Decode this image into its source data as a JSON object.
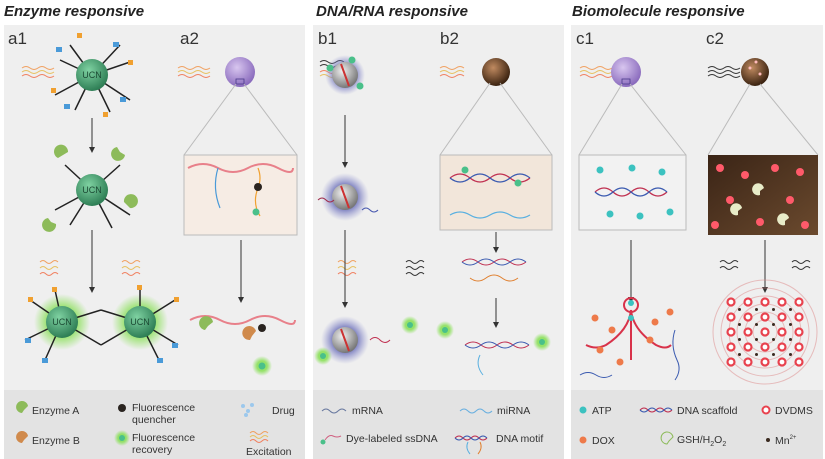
{
  "sections": [
    {
      "title": "Enzyme responsive",
      "panels": [
        "a1",
        "a2"
      ]
    },
    {
      "title": "DNA/RNA responsive",
      "panels": [
        "b1",
        "b2"
      ]
    },
    {
      "title": "Biomolecule responsive",
      "panels": [
        "c1",
        "c2"
      ]
    }
  ],
  "nanoparticle_label": "UCN",
  "legend_a": {
    "enzyme_a": "Enzyme A",
    "enzyme_b": "Enzyme B",
    "quencher_1": "Fluorescence",
    "quencher_2": "quencher",
    "recovery_1": "Fluorescence",
    "recovery_2": "recovery",
    "drug": "Drug",
    "excitation": "Excitation"
  },
  "legend_b": {
    "mrna": "mRNA",
    "mirna": "miRNA",
    "ssdna": "Dye-labeled ssDNA",
    "motif": "DNA motif"
  },
  "legend_c": {
    "atp": "ATP",
    "scaffold": "DNA scaffold",
    "dvdms": "DVDMS",
    "dox": "DOX",
    "gsh": "GSH/H",
    "gsh_sub1": "2",
    "gsh_o": "O",
    "gsh_sub2": "2",
    "mn": "Mn",
    "mn_sup": "2+"
  },
  "colors": {
    "panel_bg": "#efefef",
    "legend_bg": "#e3e3e3",
    "ucn_green": "#3c9a6a",
    "enzyme_green": "#8dbb5a",
    "enzyme_orange": "#d08a4c",
    "strand_red": "#d8324a",
    "glow": "#8be05a",
    "atp": "#3cc2c0",
    "dox": "#ee7a4a",
    "dvdms": "#e8424e"
  }
}
